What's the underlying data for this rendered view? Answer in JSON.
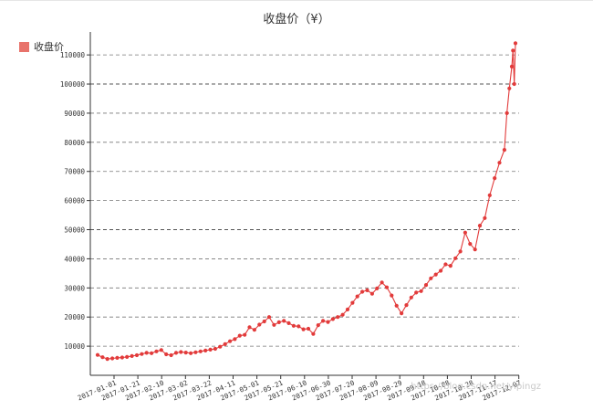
{
  "page": {
    "watermark": "https://blog.csdn.net/yipingz"
  },
  "colors": {
    "series": "#e23b3b",
    "legend_swatch": "#e8736b",
    "grid": "#777777",
    "axis": "#333333"
  },
  "chart_data": {
    "type": "line",
    "title": "收盘价（¥）",
    "legend_position": "top-left",
    "grid": true,
    "xlabel": "",
    "ylabel": "",
    "x_range": [
      "2017-01-01",
      "2017-12-08"
    ],
    "ylim": [
      0,
      116000
    ],
    "y_ticks": [
      10000,
      20000,
      30000,
      40000,
      50000,
      60000,
      70000,
      80000,
      90000,
      100000,
      110000
    ],
    "y_tick_labels": [
      "10000",
      "20000",
      "30000",
      "40000",
      "50000",
      "60000",
      "70000",
      "80000",
      "90000",
      "100000",
      "110000"
    ],
    "x_ticks": [
      "2017-01-01",
      "2017-01-21",
      "2017-02-10",
      "2017-03-02",
      "2017-03-22",
      "2017-04-11",
      "2017-05-01",
      "2017-05-21",
      "2017-06-10",
      "2017-06-30",
      "2017-07-20",
      "2017-08-09",
      "2017-08-29",
      "2017-09-18",
      "2017-10-08",
      "2017-10-28",
      "2017-11-17",
      "2017-12-07"
    ],
    "series": [
      {
        "name": "收盘价",
        "x": [
          "2017-01-01",
          "2017-01-05",
          "2017-01-09",
          "2017-01-13",
          "2017-01-17",
          "2017-01-21",
          "2017-01-25",
          "2017-01-29",
          "2017-02-02",
          "2017-02-06",
          "2017-02-10",
          "2017-02-14",
          "2017-02-18",
          "2017-02-22",
          "2017-02-26",
          "2017-03-02",
          "2017-03-06",
          "2017-03-10",
          "2017-03-14",
          "2017-03-18",
          "2017-03-22",
          "2017-03-26",
          "2017-03-30",
          "2017-04-03",
          "2017-04-07",
          "2017-04-11",
          "2017-04-15",
          "2017-04-19",
          "2017-04-23",
          "2017-04-27",
          "2017-05-01",
          "2017-05-05",
          "2017-05-09",
          "2017-05-13",
          "2017-05-17",
          "2017-05-21",
          "2017-05-25",
          "2017-05-29",
          "2017-06-02",
          "2017-06-06",
          "2017-06-10",
          "2017-06-14",
          "2017-06-18",
          "2017-06-22",
          "2017-06-26",
          "2017-06-30",
          "2017-07-04",
          "2017-07-08",
          "2017-07-12",
          "2017-07-16",
          "2017-07-20",
          "2017-07-24",
          "2017-07-28",
          "2017-08-01",
          "2017-08-05",
          "2017-08-09",
          "2017-08-13",
          "2017-08-17",
          "2017-08-21",
          "2017-08-25",
          "2017-08-29",
          "2017-09-02",
          "2017-09-06",
          "2017-09-10",
          "2017-09-14",
          "2017-09-18",
          "2017-09-22",
          "2017-09-26",
          "2017-09-30",
          "2017-10-04",
          "2017-10-08",
          "2017-10-12",
          "2017-10-16",
          "2017-10-20",
          "2017-10-24",
          "2017-10-28",
          "2017-11-01",
          "2017-11-05",
          "2017-11-09",
          "2017-11-13",
          "2017-11-17",
          "2017-11-21",
          "2017-11-25",
          "2017-11-29",
          "2017-12-01",
          "2017-12-03",
          "2017-12-05",
          "2017-12-06",
          "2017-12-07",
          "2017-12-08"
        ],
        "values": [
          7000,
          6200,
          5600,
          5800,
          6000,
          6100,
          6300,
          6600,
          6900,
          7300,
          7700,
          7600,
          8200,
          8700,
          7200,
          6900,
          7700,
          8000,
          7800,
          7600,
          7900,
          8200,
          8500,
          8800,
          9100,
          9800,
          10700,
          11700,
          12400,
          13600,
          13900,
          16500,
          15600,
          17400,
          18500,
          20000,
          17300,
          18200,
          18700,
          17900,
          17000,
          16800,
          15800,
          16000,
          14200,
          17200,
          18700,
          18300,
          19300,
          20000,
          20800,
          22600,
          24900,
          27100,
          28700,
          29200,
          28000,
          29800,
          31900,
          30200,
          27400,
          23900,
          21300,
          24100,
          26700,
          28400,
          28900,
          31000,
          33300,
          34600,
          35900,
          38100,
          37600,
          40200,
          42500,
          49000,
          45100,
          43200,
          51400,
          54000,
          61800,
          67700,
          73000,
          77400,
          90000,
          98500,
          106000,
          111500,
          100000,
          114000
        ]
      }
    ]
  }
}
